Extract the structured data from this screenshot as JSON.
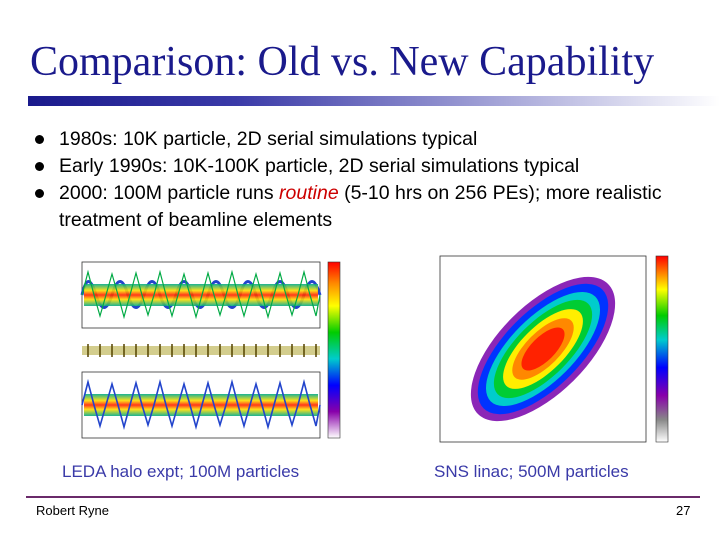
{
  "slide": {
    "title": "Comparison: Old vs. New Capability",
    "bullets": [
      {
        "text": "1980s: 10K particle, 2D serial simulations typical"
      },
      {
        "text": "Early 1990s: 10K-100K particle, 2D serial simulations typical"
      },
      {
        "pre": "2000: 100M particle runs ",
        "highlight": "routine",
        "post": " (5-10 hrs on 256 PEs); more realistic treatment of beamline elements"
      }
    ],
    "captions": {
      "left": "LEDA halo expt; 100M particles",
      "right": "SNS linac; 500M particles"
    },
    "footer": {
      "author": "Robert Ryne",
      "page": "27"
    },
    "colors": {
      "title": "#1a1a8c",
      "caption": "#3a3aa8",
      "highlight": "#cc0000"
    }
  }
}
